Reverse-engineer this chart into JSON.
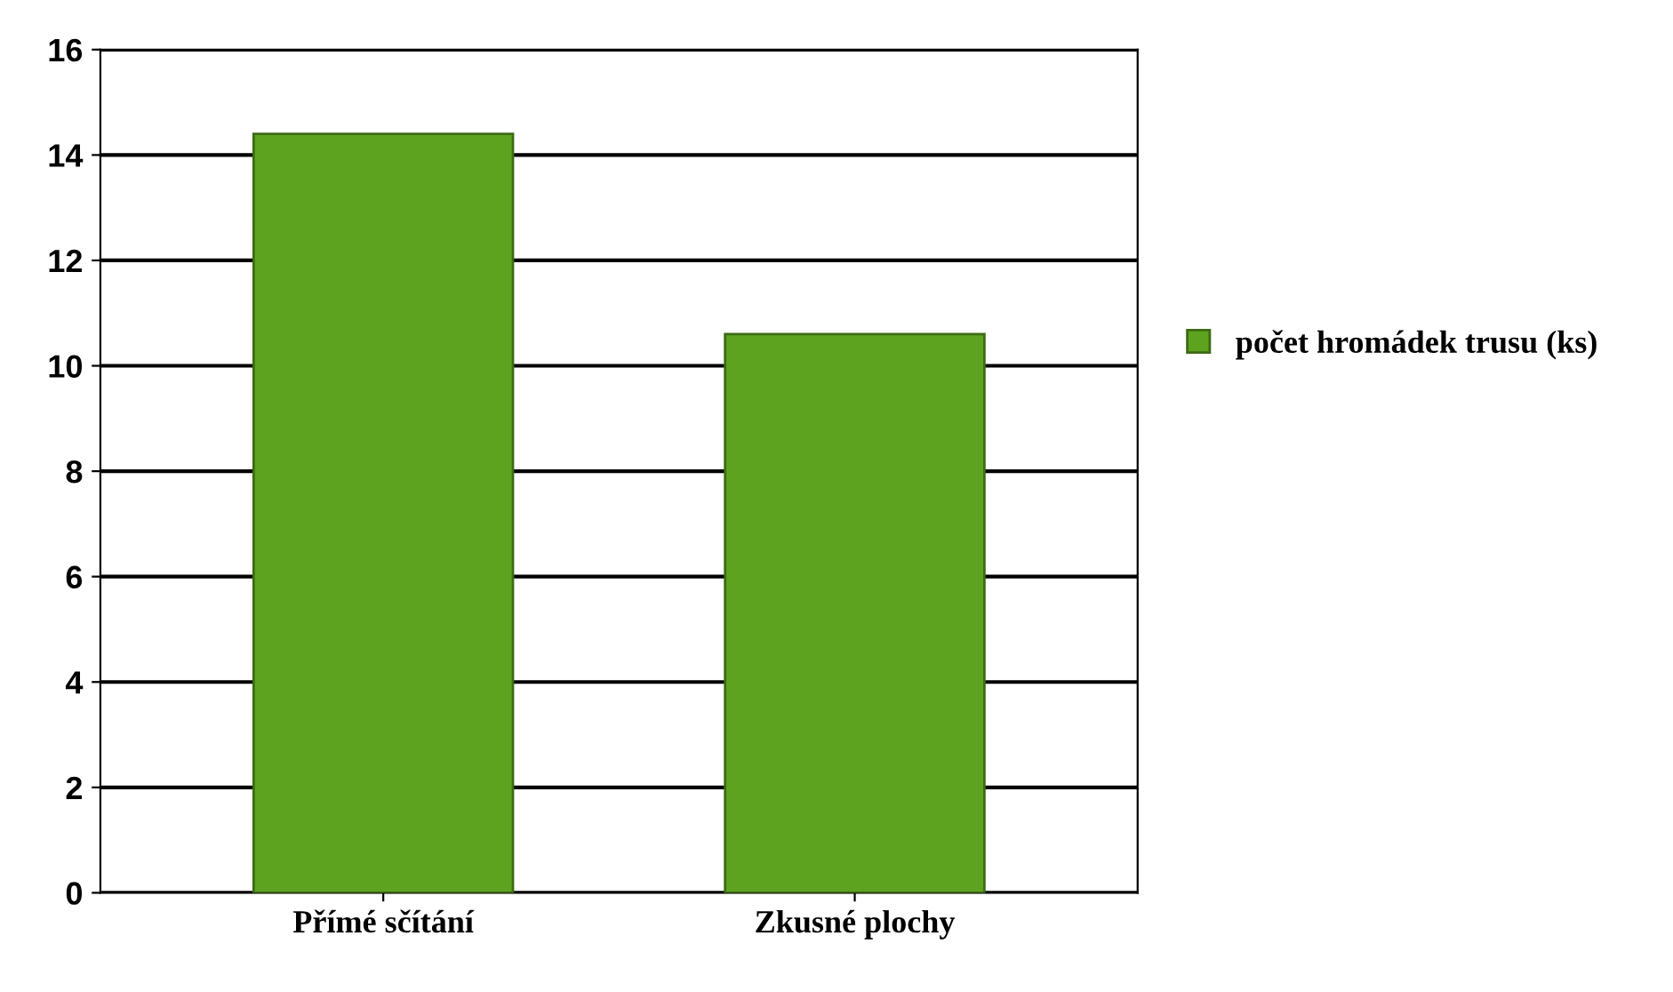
{
  "chart_data": {
    "type": "bar",
    "categories": [
      "Přímé sčítání",
      "Zkusné plochy"
    ],
    "series": [
      {
        "name": "počet hromádek trusu (ks)",
        "color": "#5ea320",
        "values": [
          14.4,
          10.6
        ]
      }
    ],
    "ylim": [
      0,
      16
    ],
    "yticks": [
      0,
      2,
      4,
      6,
      8,
      10,
      12,
      14,
      16
    ],
    "grid": "y",
    "legend": "right"
  }
}
